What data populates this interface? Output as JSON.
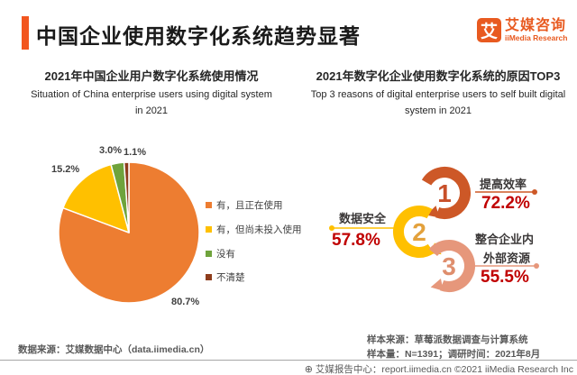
{
  "header": {
    "title": "中国企业使用数字化系统趋势显著"
  },
  "logo": {
    "glyph": "艾",
    "name_cn": "艾媒咨询",
    "name_en": "iiMedia Research",
    "color": "#E85A20"
  },
  "left_chart": {
    "title_cn": "2021年中国企业用户数字化系统使用情况",
    "title_en_line1": "Situation of China enterprise users using digital system",
    "title_en_line2": "in 2021"
  },
  "right_chart": {
    "title_cn": "2021年数字化企业使用数字化系统的原因TOP3",
    "title_en_line1": "Top 3 reasons of digital enterprise users to self built digital",
    "title_en_line2": "system in 2021",
    "items": [
      {
        "rank": "1",
        "label": "提高效率",
        "value": "72.2%",
        "color": "#CD5827",
        "num_color": "#C8502A"
      },
      {
        "rank": "2",
        "label": "数据安全",
        "value": "57.8%",
        "color": "#FFC000",
        "num_color": "#E3A13C"
      },
      {
        "rank": "3",
        "label": "整合企业内",
        "label2": "外部资源",
        "value": "55.5%",
        "color": "#E6977B",
        "num_color": "#DF8E6D"
      }
    ]
  },
  "chart_data": [
    {
      "type": "pie",
      "title": "2021年中国企业用户数字化系统使用情况",
      "subtitle": "Situation of China enterprise users using digital system in 2021",
      "categories": [
        "有，且正在使用",
        "有，但尚未投入使用",
        "没有",
        "不清楚"
      ],
      "values": [
        80.7,
        15.2,
        3.0,
        1.1
      ],
      "labels": [
        "80.7%",
        "15.2%",
        "3.0%",
        "1.1%"
      ],
      "colors": [
        "#ED7D31",
        "#FFC000",
        "#6FA33C",
        "#8E3D1C"
      ],
      "legend_position": "right",
      "start_angle": 0,
      "direction": "clockwise"
    },
    {
      "type": "bar",
      "title": "2021年数字化企业使用数字化系统的原因TOP3",
      "subtitle": "Top 3 reasons of digital enterprise users to self built digital system in 2021",
      "categories": [
        "提高效率",
        "数据安全",
        "整合企业内外部资源"
      ],
      "values": [
        72.2,
        57.8,
        55.5
      ],
      "labels": [
        "72.2%",
        "57.8%",
        "55.5%"
      ],
      "ranks": [
        "1",
        "2",
        "3"
      ],
      "unit": "%"
    }
  ],
  "footnotes": {
    "source_left": "数据来源：艾媒数据中心（data.iimedia.cn）",
    "sample_source": "样本来源：草莓派数据调查与计算系统",
    "sample_size": "样本量：N=1391；调研时间：2021年8月",
    "footer": "艾媒报告中心：report.iimedia.cn  ©2021  iiMedia Research Inc"
  },
  "accent_colors": {
    "header_bar": "#F2561F",
    "percent_red": "#C00000",
    "title_text": "#262626",
    "gray_text": "#595959"
  }
}
